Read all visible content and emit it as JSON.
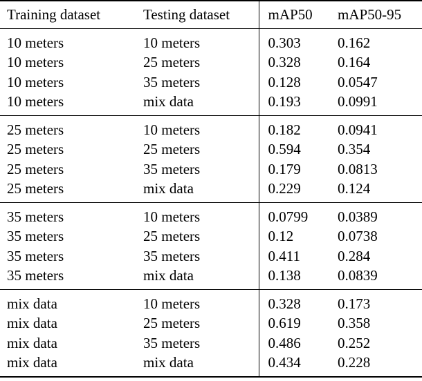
{
  "table": {
    "columns": [
      "Training dataset",
      "Testing dataset",
      "mAP50",
      "mAP50-95"
    ],
    "groups": [
      {
        "training": "10 meters",
        "rows": [
          [
            "10 meters",
            "10 meters",
            "0.303",
            "0.162"
          ],
          [
            "10 meters",
            "25 meters",
            "0.328",
            "0.164"
          ],
          [
            "10 meters",
            "35 meters",
            "0.128",
            "0.0547"
          ],
          [
            "10 meters",
            "mix data",
            "0.193",
            "0.0991"
          ]
        ]
      },
      {
        "training": "25 meters",
        "rows": [
          [
            "25 meters",
            "10 meters",
            "0.182",
            "0.0941"
          ],
          [
            "25 meters",
            "25 meters",
            "0.594",
            "0.354"
          ],
          [
            "25 meters",
            "35 meters",
            "0.179",
            "0.0813"
          ],
          [
            "25 meters",
            "mix data",
            "0.229",
            "0.124"
          ]
        ]
      },
      {
        "training": "35 meters",
        "rows": [
          [
            "35 meters",
            "10 meters",
            "0.0799",
            "0.0389"
          ],
          [
            "35 meters",
            "25 meters",
            "0.12",
            "0.0738"
          ],
          [
            "35 meters",
            "35 meters",
            "0.411",
            "0.284"
          ],
          [
            "35 meters",
            "mix data",
            "0.138",
            "0.0839"
          ]
        ]
      },
      {
        "training": "mix data",
        "rows": [
          [
            "mix data",
            "10 meters",
            "0.328",
            "0.173"
          ],
          [
            "mix data",
            "25 meters",
            "0.619",
            "0.358"
          ],
          [
            "mix data",
            "35 meters",
            "0.486",
            "0.252"
          ],
          [
            "mix data",
            "mix data",
            "0.434",
            "0.228"
          ]
        ]
      }
    ],
    "colors": {
      "text": "#000000",
      "rule": "#000000",
      "background": "#ffffff"
    }
  }
}
